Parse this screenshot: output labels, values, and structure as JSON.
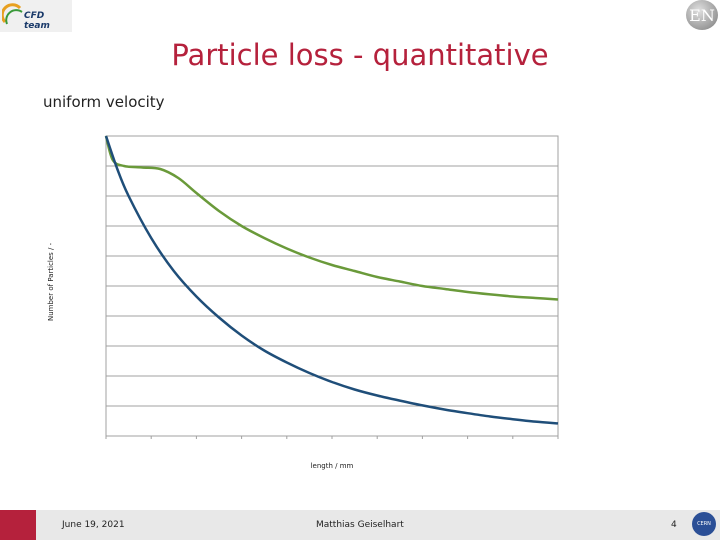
{
  "header": {
    "logo_text": "CFD team",
    "badge_text": "EN"
  },
  "slide": {
    "title": "Particle loss - quantitative",
    "subtitle": "uniform velocity"
  },
  "chart_data": {
    "type": "line",
    "xlabel": "length / mm",
    "ylabel": "Number of Particles / -",
    "xlim": [
      0,
      10
    ],
    "ylim": [
      0,
      10
    ],
    "grid": true,
    "x_ticks": 10,
    "y_gridlines": 10,
    "series": [
      {
        "color": "#6a9a3a",
        "x": [
          0,
          0.15,
          0.4,
          0.8,
          1.2,
          1.6,
          2.0,
          2.5,
          3.0,
          3.5,
          4.0,
          4.5,
          5.0,
          5.5,
          6.0,
          6.5,
          7.0,
          7.5,
          8.0,
          8.5,
          9.0,
          9.5,
          10.0
        ],
        "values": [
          10.0,
          9.2,
          9.0,
          8.95,
          8.9,
          8.6,
          8.1,
          7.5,
          7.0,
          6.6,
          6.25,
          5.95,
          5.7,
          5.5,
          5.3,
          5.15,
          5.0,
          4.9,
          4.8,
          4.72,
          4.65,
          4.6,
          4.55
        ]
      },
      {
        "color": "#1f4e79",
        "x": [
          0,
          0.25,
          0.5,
          1.0,
          1.5,
          2.0,
          2.5,
          3.0,
          3.5,
          4.0,
          4.5,
          5.0,
          5.5,
          6.0,
          6.5,
          7.0,
          7.5,
          8.0,
          8.5,
          9.0,
          9.5,
          10.0
        ],
        "values": [
          10.0,
          8.9,
          8.0,
          6.6,
          5.5,
          4.65,
          3.95,
          3.35,
          2.85,
          2.45,
          2.1,
          1.8,
          1.55,
          1.35,
          1.18,
          1.02,
          0.88,
          0.76,
          0.65,
          0.56,
          0.48,
          0.42
        ]
      }
    ]
  },
  "footer": {
    "date": "June 19, 2021",
    "author": "Matthias Geiselhart",
    "page": "4",
    "logo_text": "CERN"
  }
}
